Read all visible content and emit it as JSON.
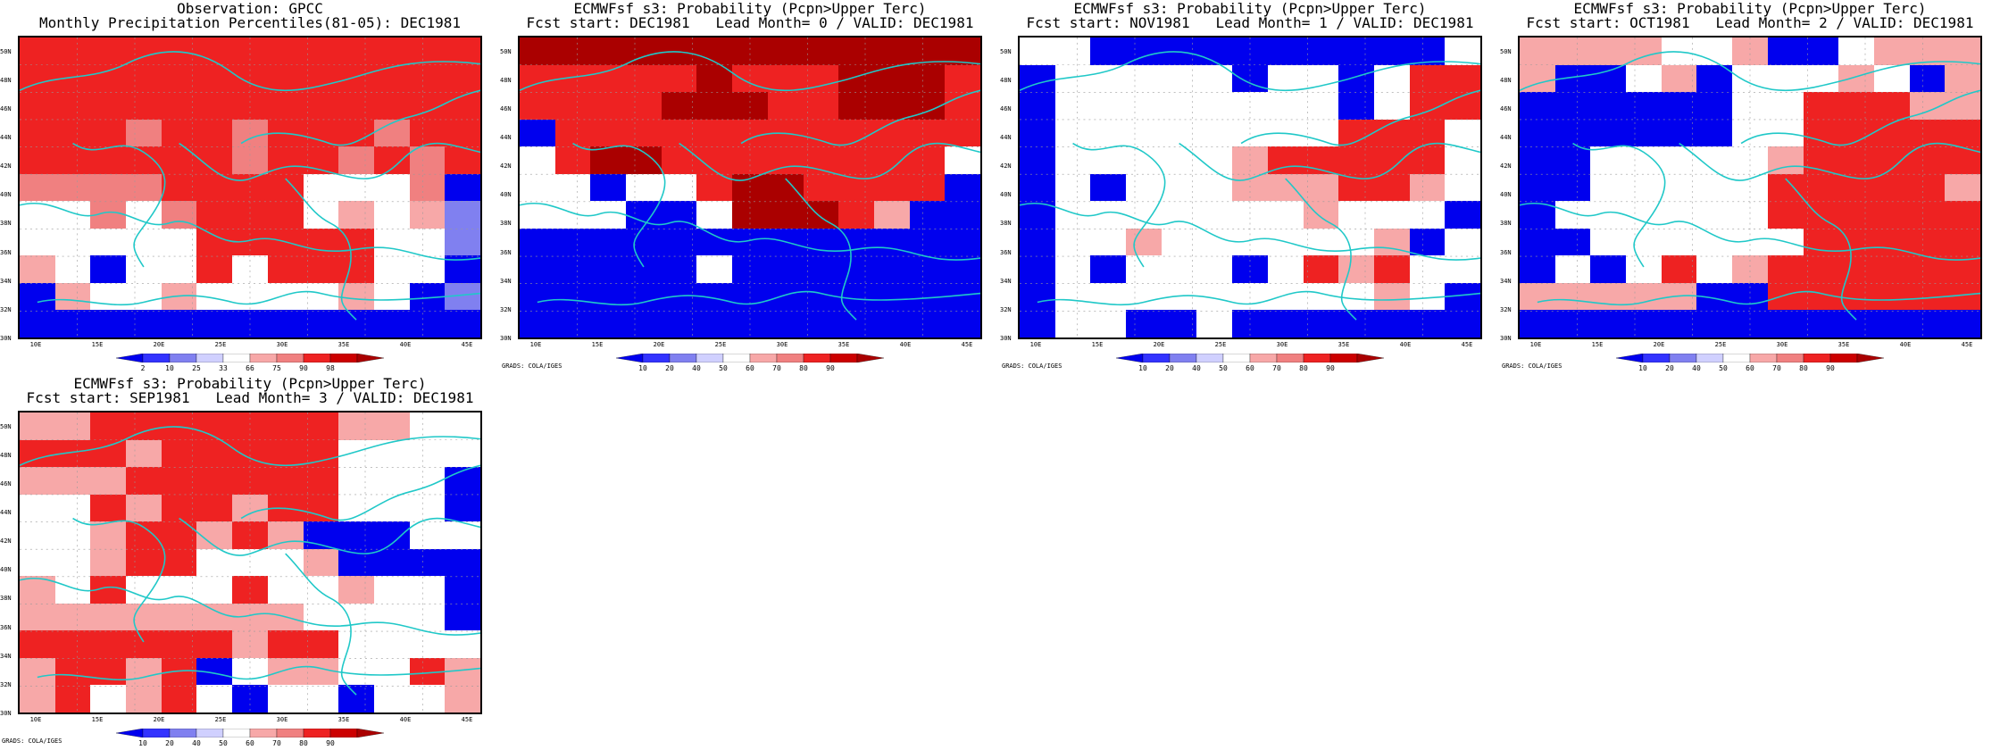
{
  "panels": [
    {
      "title": "Observation: GPCC",
      "subtitle": "Monthly Precipitation Percentiles(81-05): DEC1981",
      "legend": [
        "2",
        "10",
        "25",
        "33",
        "66",
        "75",
        "90",
        "98"
      ],
      "credit": "",
      "grid": [
        "RRRRRRRRRRRRR",
        "RRRRRRRRRRRRR",
        "RRRRRRRRRRRRR",
        "RRRrRRrRRRrRR",
        "RRRRRRrRRrRrR",
        "rrrrRRRRwwwrB",
        "wwrwrRRRwlwlb",
        "wwwwwRRRRRwwb",
        "lwBwwRwRRRwwB",
        "BlwwlwwwwlwBb",
        "BBBBBBBBBBBBB"
      ]
    },
    {
      "title": "ECMWFsf s3: Probability (Pcpn>Upper Terc)",
      "subtitle": "Fcst start: DEC1981   Lead Month= 0 / VALID: DEC1981",
      "legend": [
        "10",
        "20",
        "40",
        "50",
        "60",
        "70",
        "80",
        "90"
      ],
      "credit": "GRADS: COLA/IGES",
      "grid": [
        "DDDDDDDDDDDDD",
        "RRRRRDRRRDDDR",
        "RRRRDDDRRDDDR",
        "BRRRRRRRRRRRR",
        "wRDDRRRRRRRRw",
        "wwBwwRDDRRRRB",
        "wwwBBwDDDRlBB",
        "BBBBBBBBBBBBB",
        "BBBBBwBBBBBBB",
        "BBBBBBBBBBBBB",
        "BBBBBBBBBBBBB"
      ]
    },
    {
      "title": "ECMWFsf s3: Probability (Pcpn>Upper Terc)",
      "subtitle": "Fcst start: NOV1981   Lead Month= 1 / VALID: DEC1981",
      "legend": [
        "10",
        "20",
        "40",
        "50",
        "60",
        "70",
        "80",
        "90"
      ],
      "credit": "GRADS: COLA/IGES",
      "grid": [
        "wwBBBBBBBBBBw",
        "BwwwwwBwwBwRR",
        "BwwwwwwwwBwRR",
        "BwwwwwwwwRRRw",
        "BwwwwwlRRRRRw",
        "BwBwwwlllRRlw",
        "BwwwwwwwlwwwB",
        "BwwlwwwwwwlBw",
        "BwBwwwBwRlRww",
        "BwwwwwwwwwlwB",
        "BwwBBwBBBBBBB"
      ]
    },
    {
      "title": "ECMWFsf s3: Probability (Pcpn>Upper Terc)",
      "subtitle": "Fcst start: OCT1981   Lead Month= 2 / VALID: DEC1981",
      "legend": [
        "10",
        "20",
        "40",
        "50",
        "60",
        "70",
        "80",
        "90"
      ],
      "credit": "GRADS: COLA/IGES",
      "grid": [
        "llllwwlBBwlll",
        "lBBwlBwwwlwBl",
        "BBBBBBwwRRRll",
        "BBBBBBwwRRRRR",
        "BBwwwwwlRRRRR",
        "BBwwwwwRRRRRl",
        "BwwwwwwRRRRRR",
        "BBwwwwwwRRRRR",
        "BwBwRwlRRRRRR",
        "lllllBBRRRRRR",
        "BBBBBBBBBBBBB"
      ]
    },
    {
      "title": "ECMWFsf s3: Probability (Pcpn>Upper Terc)",
      "subtitle": "Fcst start: SEP1981   Lead Month= 3 / VALID: DEC1981",
      "legend": [
        "10",
        "20",
        "40",
        "50",
        "60",
        "70",
        "80",
        "90"
      ],
      "credit": "GRADS: COLA/IGES",
      "grid": [
        "llRRRRRRRllww",
        "RRRlRRRRRwwww",
        "lllRRRRRRwwwB",
        "wwRlRRlRRwwwB",
        "wwlRRlRlBBBww",
        "wwlRRwwwlBBBB",
        "lwRwwwRwwlwwB",
        "llllllllwwwwB",
        "RRRRRRlRRwwww",
        "lRRlRBwllwwRl",
        "lRwlRwBwwBwwl"
      ]
    }
  ],
  "y_labels": [
    "50N",
    "48N",
    "46N",
    "44N",
    "42N",
    "40N",
    "38N",
    "36N",
    "34N",
    "32N",
    "30N"
  ],
  "x_labels": [
    "10E",
    "15E",
    "20E",
    "25E",
    "30E",
    "35E",
    "40E",
    "45E"
  ],
  "colors": {
    "R": "#ee2222",
    "D": "#aa0000",
    "r": "#f08080",
    "l": "#f7a8a8",
    "w": "#ffffff",
    "B": "#0000ee",
    "b": "#8080f0"
  }
}
